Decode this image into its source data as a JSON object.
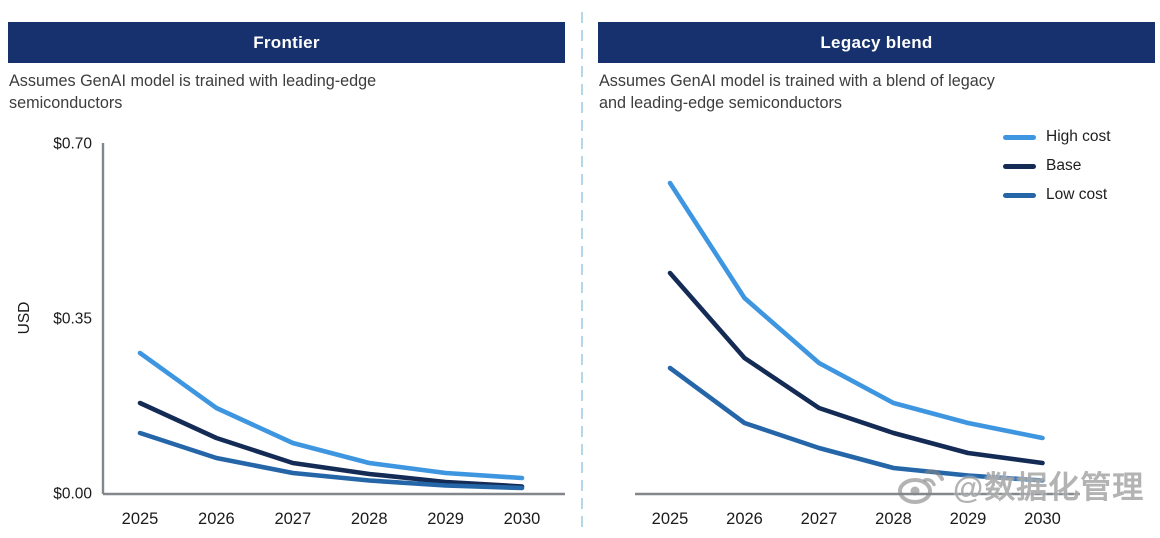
{
  "panels": [
    {
      "title": "Frontier",
      "subtitle_lines": [
        "Assumes GenAI model is trained with leading-edge",
        "semiconductors"
      ]
    },
    {
      "title": "Legacy blend",
      "subtitle_lines": [
        "Assumes GenAI model is trained with a blend of legacy",
        "and leading-edge semiconductors"
      ]
    }
  ],
  "legend": {
    "position": "top-right",
    "items": [
      {
        "label": "High cost"
      },
      {
        "label": "Base"
      },
      {
        "label": "Low cost"
      }
    ]
  },
  "colors": {
    "header_bar": "#16316d",
    "axis": "#83878c",
    "divider": "#b5d7ea",
    "series": {
      "High cost": "#3f96e0",
      "Base": "#132b55",
      "Low cost": "#2566a9"
    }
  },
  "watermark": {
    "icon": "weibo-icon",
    "text": "@数据化管理"
  },
  "chart_data": [
    {
      "type": "line",
      "title": "Frontier",
      "subtitle": "Assumes GenAI model is trained with leading-edge semiconductors",
      "categories": [
        "2025",
        "2026",
        "2027",
        "2028",
        "2029",
        "2030"
      ],
      "xlabel": "",
      "ylabel": "USD",
      "ylim": [
        0,
        0.7
      ],
      "yticks": [
        {
          "label": "$0.00",
          "value": 0.0
        },
        {
          "label": "$0.35",
          "value": 0.35
        },
        {
          "label": "$0.70",
          "value": 0.7
        }
      ],
      "y_axis_visible": true,
      "grid": false,
      "series": [
        {
          "name": "High cost",
          "values": [
            0.28,
            0.17,
            0.1,
            0.06,
            0.04,
            0.03
          ]
        },
        {
          "name": "Base",
          "values": [
            0.18,
            0.11,
            0.06,
            0.038,
            0.022,
            0.013
          ]
        },
        {
          "name": "Low cost",
          "values": [
            0.12,
            0.07,
            0.04,
            0.025,
            0.015,
            0.01
          ]
        }
      ]
    },
    {
      "type": "line",
      "title": "Legacy blend",
      "subtitle": "Assumes GenAI model is trained with a blend of legacy and leading-edge semiconductors",
      "categories": [
        "2025",
        "2026",
        "2027",
        "2028",
        "2029",
        "2030"
      ],
      "xlabel": "",
      "ylabel": "",
      "ylim": [
        0,
        0.7
      ],
      "yticks": [],
      "y_axis_visible": false,
      "grid": false,
      "legend_position": "top-right",
      "series": [
        {
          "name": "High cost",
          "values": [
            0.62,
            0.39,
            0.26,
            0.18,
            0.14,
            0.11
          ]
        },
        {
          "name": "Base",
          "values": [
            0.44,
            0.27,
            0.17,
            0.12,
            0.08,
            0.06
          ]
        },
        {
          "name": "Low cost",
          "values": [
            0.25,
            0.14,
            0.09,
            0.05,
            0.035,
            0.025
          ]
        }
      ]
    }
  ]
}
